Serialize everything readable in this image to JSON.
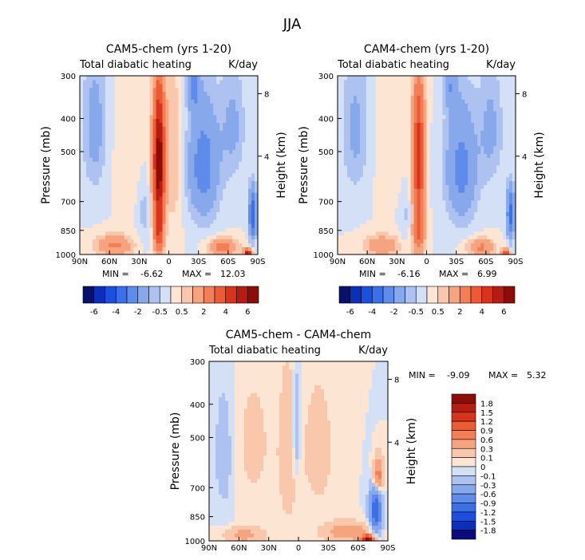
{
  "figure_title": "JJA",
  "palettes": {
    "abs": [
      "#08106b",
      "#0b2fb8",
      "#1a4fe0",
      "#3b6fe8",
      "#5f8bea",
      "#88a8ec",
      "#adc2f0",
      "#d3e0f6",
      "#fde5d4",
      "#f9c7ab",
      "#f6a47f",
      "#f27f56",
      "#ec5b33",
      "#d9341b",
      "#b51d12",
      "#8b0d07"
    ],
    "diff": [
      "#0a0a7c",
      "#0b2fb8",
      "#1a4fe0",
      "#3b6fe8",
      "#5f8bea",
      "#88a8ec",
      "#adc2f0",
      "#d3e0f6",
      "#fde5d4",
      "#f9c7ab",
      "#f6a47f",
      "#f27f56",
      "#ec5b33",
      "#d9341b",
      "#b51d12",
      "#8b0d07"
    ]
  },
  "chart_data": [
    {
      "id": "cam5",
      "type": "heatmap",
      "title": "CAM5-chem (yrs 1-20)",
      "left_label": "Total diabatic heating",
      "right_label": "K/day",
      "ylabel": "Pressure (mb)",
      "y2label": "Height (km)",
      "x_ticks": [
        "90N",
        "60N",
        "30N",
        "0",
        "30S",
        "60S",
        "90S"
      ],
      "y_ticks": [
        "300",
        "400",
        "500",
        "700",
        "850",
        "1000"
      ],
      "y2_ticks": [
        "8",
        "4"
      ],
      "xlim": [
        90,
        -90
      ],
      "ylim": [
        1000,
        300
      ],
      "min_label": "MIN =",
      "min_value": "-6.62",
      "max_label": "MAX =",
      "max_value": "12.03",
      "levels": [
        -6,
        -5,
        -4,
        -3,
        -2,
        -1,
        -0.5,
        0,
        0.5,
        1,
        2,
        3,
        4,
        5,
        6
      ],
      "colorbar_labels": [
        "-6",
        "-4",
        "-2",
        "-0.5",
        "0.5",
        "2",
        "4",
        "6"
      ],
      "features": [
        {
          "lat": 10,
          "p": 540,
          "width_lat": 6,
          "width_p": 260,
          "value": 7.0
        },
        {
          "lat": 10,
          "p": 880,
          "width_lat": 5,
          "width_p": 130,
          "value": 3.0
        },
        {
          "lat": -5,
          "p": 520,
          "width_lat": 9,
          "width_p": 280,
          "value": 1.0
        },
        {
          "lat": 55,
          "p": 940,
          "width_lat": 18,
          "width_p": 70,
          "value": 2.2
        },
        {
          "lat": -55,
          "p": 950,
          "width_lat": 14,
          "width_p": 55,
          "value": 2.8
        },
        {
          "lat": -80,
          "p": 990,
          "width_lat": 4,
          "width_p": 30,
          "value": 6.0
        },
        {
          "lat": 40,
          "p": 500,
          "width_lat": 14,
          "width_p": 170,
          "value": 0.4
        },
        {
          "lat": -35,
          "p": 550,
          "width_lat": 16,
          "width_p": 220,
          "value": -2.6
        },
        {
          "lat": -25,
          "p": 320,
          "width_lat": 6,
          "width_p": 60,
          "value": -1.8
        },
        {
          "lat": -65,
          "p": 420,
          "width_lat": 12,
          "width_p": 160,
          "value": -1.2
        },
        {
          "lat": 75,
          "p": 420,
          "width_lat": 12,
          "width_p": 200,
          "value": -1.4
        },
        {
          "lat": 25,
          "p": 750,
          "width_lat": 6,
          "width_p": 170,
          "value": -0.7
        },
        {
          "lat": -85,
          "p": 760,
          "width_lat": 4,
          "width_p": 130,
          "value": -4.0
        }
      ]
    },
    {
      "id": "cam4",
      "type": "heatmap",
      "title": "CAM4-chem (yrs 1-20)",
      "left_label": "Total diabatic heating",
      "right_label": "K/day",
      "ylabel": "Pressure (mb)",
      "y2label": "Height (km)",
      "x_ticks": [
        "90N",
        "60N",
        "30N",
        "0",
        "30S",
        "60S",
        "90S"
      ],
      "y_ticks": [
        "300",
        "400",
        "500",
        "700",
        "850",
        "1000"
      ],
      "y2_ticks": [
        "8",
        "4"
      ],
      "xlim": [
        90,
        -90
      ],
      "ylim": [
        1000,
        300
      ],
      "min_label": "MIN =",
      "min_value": "-6.16",
      "max_label": "MAX =",
      "max_value": "6.99",
      "levels": [
        -6,
        -5,
        -4,
        -3,
        -2,
        -1,
        -0.5,
        0,
        0.5,
        1,
        2,
        3,
        4,
        5,
        6
      ],
      "colorbar_labels": [
        "-6",
        "-4",
        "-2",
        "-0.5",
        "0.5",
        "2",
        "4",
        "6"
      ],
      "features": [
        {
          "lat": 8,
          "p": 520,
          "width_lat": 6,
          "width_p": 260,
          "value": 4.8
        },
        {
          "lat": 8,
          "p": 870,
          "width_lat": 6,
          "width_p": 140,
          "value": 2.6
        },
        {
          "lat": 45,
          "p": 940,
          "width_lat": 18,
          "width_p": 70,
          "value": 1.8
        },
        {
          "lat": -55,
          "p": 950,
          "width_lat": 14,
          "width_p": 55,
          "value": 2.2
        },
        {
          "lat": -80,
          "p": 990,
          "width_lat": 4,
          "width_p": 30,
          "value": 4.0
        },
        {
          "lat": 35,
          "p": 480,
          "width_lat": 16,
          "width_p": 190,
          "value": 0.5
        },
        {
          "lat": -35,
          "p": 560,
          "width_lat": 16,
          "width_p": 220,
          "value": -2.4
        },
        {
          "lat": -25,
          "p": 320,
          "width_lat": 6,
          "width_p": 60,
          "value": -1.6
        },
        {
          "lat": -65,
          "p": 430,
          "width_lat": 12,
          "width_p": 170,
          "value": -1.2
        },
        {
          "lat": 72,
          "p": 430,
          "width_lat": 14,
          "width_p": 200,
          "value": -1.2
        },
        {
          "lat": 22,
          "p": 760,
          "width_lat": 6,
          "width_p": 170,
          "value": -0.6
        },
        {
          "lat": -85,
          "p": 760,
          "width_lat": 4,
          "width_p": 130,
          "value": -3.6
        }
      ]
    },
    {
      "id": "diff",
      "type": "heatmap",
      "title": "CAM5-chem - CAM4-chem",
      "left_label": "Total diabatic heating",
      "right_label": "K/day",
      "ylabel": "Pressure (mb)",
      "y2label": "Height (km)",
      "x_ticks": [
        "90N",
        "60N",
        "30N",
        "0",
        "30S",
        "60S",
        "90S"
      ],
      "y_ticks": [
        "300",
        "400",
        "500",
        "700",
        "850",
        "1000"
      ],
      "y2_ticks": [
        "8",
        "4"
      ],
      "xlim": [
        90,
        -90
      ],
      "ylim": [
        1000,
        300
      ],
      "min_label": "MIN =",
      "min_value": "-9.09",
      "max_label": "MAX =",
      "max_value": "5.32",
      "levels": [
        -1.8,
        -1.5,
        -1.2,
        -0.9,
        -0.6,
        -0.3,
        -0.1,
        0,
        0.1,
        0.3,
        0.6,
        0.9,
        1.2,
        1.5,
        1.8
      ],
      "colorbar_labels": [
        "1.8",
        "1.5",
        "1.2",
        "0.9",
        "0.6",
        "0.3",
        "0.1",
        "0",
        "-0.1",
        "-0.3",
        "-0.6",
        "-0.9",
        "-1.2",
        "-1.5",
        "-1.8"
      ],
      "features": [
        {
          "lat": 10,
          "p": 560,
          "width_lat": 10,
          "width_p": 300,
          "value": 0.22
        },
        {
          "lat": 45,
          "p": 520,
          "width_lat": 20,
          "width_p": 260,
          "value": 0.14
        },
        {
          "lat": -20,
          "p": 540,
          "width_lat": 18,
          "width_p": 280,
          "value": 0.16
        },
        {
          "lat": 2,
          "p": 470,
          "width_lat": 4,
          "width_p": 180,
          "value": -0.35
        },
        {
          "lat": 75,
          "p": 560,
          "width_lat": 10,
          "width_p": 250,
          "value": -0.2
        },
        {
          "lat": -50,
          "p": 940,
          "width_lat": 22,
          "width_p": 60,
          "value": 0.55
        },
        {
          "lat": 55,
          "p": 960,
          "width_lat": 20,
          "width_p": 50,
          "value": 0.4
        },
        {
          "lat": -70,
          "p": 990,
          "width_lat": 7,
          "width_p": 30,
          "value": 1.8
        },
        {
          "lat": -78,
          "p": 800,
          "width_lat": 6,
          "width_p": 140,
          "value": -1.2
        },
        {
          "lat": -80,
          "p": 650,
          "width_lat": 5,
          "width_p": 80,
          "value": 1.0
        }
      ]
    }
  ]
}
